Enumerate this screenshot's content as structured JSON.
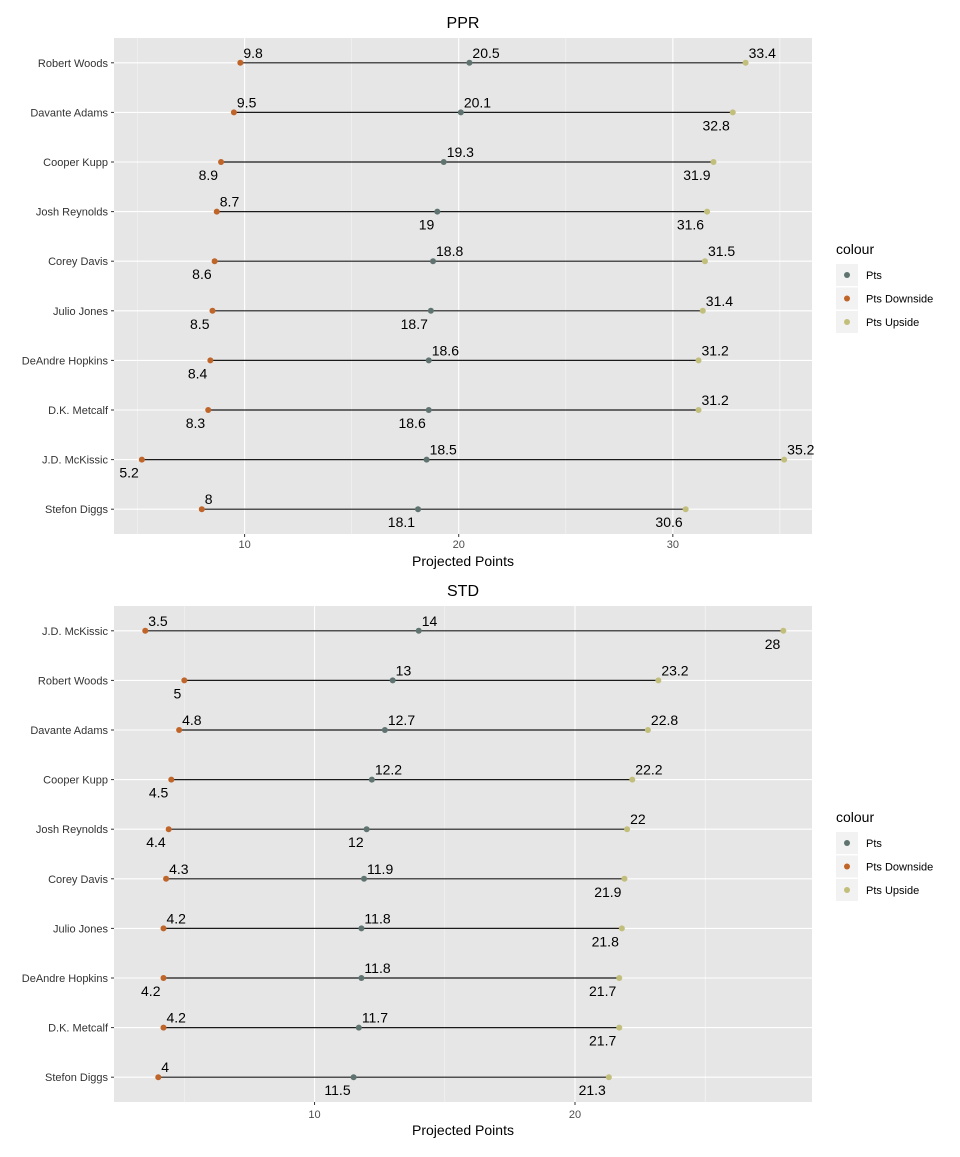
{
  "colors": {
    "pts": "#5f7470",
    "downside": "#c0652a",
    "upside": "#c2bf7c",
    "panel": "#e6e6e6",
    "grid": "#ffffff",
    "segment": "#1a1a1a"
  },
  "legend": {
    "title": "colour",
    "items": [
      {
        "label": "Pts",
        "color_key": "pts"
      },
      {
        "label": "Pts Downside",
        "color_key": "downside"
      },
      {
        "label": "Pts Upside",
        "color_key": "upside"
      }
    ]
  },
  "chart_data": [
    {
      "type": "scatter",
      "title": "PPR",
      "xlabel": "Projected Points",
      "ylabel": "",
      "xlim": [
        3.9,
        36.5
      ],
      "xticks": [
        10,
        20,
        30
      ],
      "legend_position": "right",
      "grid": true,
      "categories": [
        "Robert Woods",
        "Davante Adams",
        "Cooper Kupp",
        "Josh Reynolds",
        "Corey Davis",
        "Julio Jones",
        "DeAndre Hopkins",
        "D.K. Metcalf",
        "J.D. McKissic",
        "Stefon Diggs"
      ],
      "series": [
        {
          "name": "Pts Downside",
          "color_key": "downside",
          "values": [
            9.8,
            9.5,
            8.9,
            8.7,
            8.6,
            8.5,
            8.4,
            8.3,
            5.2,
            8
          ],
          "label_pos": [
            "above",
            "above",
            "below",
            "above",
            "below",
            "below",
            "below",
            "below",
            "below",
            "above"
          ]
        },
        {
          "name": "Pts",
          "color_key": "pts",
          "values": [
            20.5,
            20.1,
            19.3,
            19,
            18.8,
            18.7,
            18.6,
            18.6,
            18.5,
            18.1
          ],
          "label_pos": [
            "above",
            "above",
            "above",
            "below",
            "above",
            "below",
            "above",
            "below",
            "above",
            "below"
          ]
        },
        {
          "name": "Pts Upside",
          "color_key": "upside",
          "values": [
            33.4,
            32.8,
            31.9,
            31.6,
            31.5,
            31.4,
            31.2,
            31.2,
            35.2,
            30.6
          ],
          "label_pos": [
            "above",
            "below",
            "below",
            "below",
            "above",
            "above",
            "above",
            "above",
            "above",
            "below"
          ]
        }
      ]
    },
    {
      "type": "scatter",
      "title": "STD",
      "xlabel": "Projected Points",
      "ylabel": "",
      "xlim": [
        2.3,
        29.1
      ],
      "xticks": [
        10,
        20
      ],
      "legend_position": "right",
      "grid": true,
      "categories": [
        "J.D. McKissic",
        "Robert Woods",
        "Davante Adams",
        "Cooper Kupp",
        "Josh Reynolds",
        "Corey Davis",
        "Julio Jones",
        "DeAndre Hopkins",
        "D.K. Metcalf",
        "Stefon Diggs"
      ],
      "series": [
        {
          "name": "Pts Downside",
          "color_key": "downside",
          "values": [
            3.5,
            5,
            4.8,
            4.5,
            4.4,
            4.3,
            4.2,
            4.2,
            4.2,
            4
          ],
          "label_pos": [
            "above",
            "below",
            "above",
            "below",
            "below",
            "above",
            "above",
            "below",
            "above",
            "above"
          ]
        },
        {
          "name": "Pts",
          "color_key": "pts",
          "values": [
            14,
            13,
            12.7,
            12.2,
            12,
            11.9,
            11.8,
            11.8,
            11.7,
            11.5
          ],
          "label_pos": [
            "above",
            "above",
            "above",
            "above",
            "below",
            "above",
            "above",
            "above",
            "above",
            "below"
          ]
        },
        {
          "name": "Pts Upside",
          "color_key": "upside",
          "values": [
            28,
            23.2,
            22.8,
            22.2,
            22,
            21.9,
            21.8,
            21.7,
            21.7,
            21.3
          ],
          "label_pos": [
            "below",
            "above",
            "above",
            "above",
            "above",
            "below",
            "below",
            "below",
            "below",
            "below"
          ]
        }
      ]
    }
  ]
}
